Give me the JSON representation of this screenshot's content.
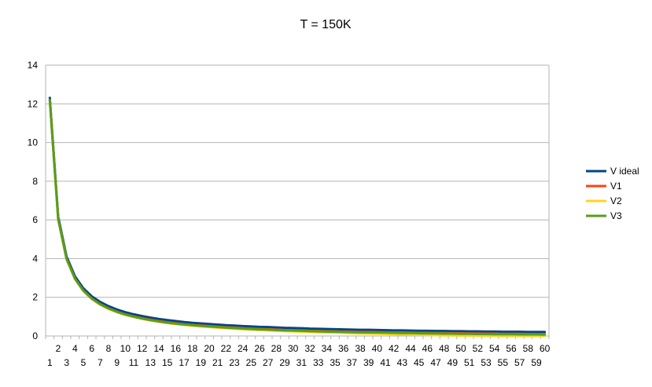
{
  "chart_data": {
    "type": "line",
    "title": "T = 150K",
    "xlabel": "",
    "ylabel": "",
    "ylim": [
      0,
      14
    ],
    "yticks": [
      "0",
      "2",
      "4",
      "6",
      "8",
      "10",
      "12",
      "14"
    ],
    "grid": "horizontal",
    "legend_position": "right",
    "categories": [
      1,
      2,
      3,
      4,
      5,
      6,
      7,
      8,
      9,
      10,
      11,
      12,
      13,
      14,
      15,
      16,
      17,
      18,
      19,
      20,
      21,
      22,
      23,
      24,
      25,
      26,
      27,
      28,
      29,
      30,
      31,
      32,
      33,
      34,
      35,
      36,
      37,
      38,
      39,
      40,
      41,
      42,
      43,
      44,
      45,
      46,
      47,
      48,
      49,
      50,
      51,
      52,
      53,
      54,
      55,
      56,
      57,
      58,
      59,
      60
    ],
    "series": [
      {
        "name": "V ideal",
        "color": "#004586",
        "values": [
          12.31,
          6.16,
          4.1,
          3.08,
          2.46,
          2.05,
          1.76,
          1.54,
          1.37,
          1.23,
          1.12,
          1.03,
          0.95,
          0.88,
          0.82,
          0.77,
          0.72,
          0.68,
          0.65,
          0.62,
          0.59,
          0.56,
          0.54,
          0.51,
          0.49,
          0.47,
          0.46,
          0.44,
          0.42,
          0.41,
          0.4,
          0.38,
          0.37,
          0.36,
          0.35,
          0.34,
          0.33,
          0.32,
          0.32,
          0.31,
          0.3,
          0.29,
          0.29,
          0.28,
          0.27,
          0.27,
          0.26,
          0.26,
          0.25,
          0.25,
          0.24,
          0.24,
          0.23,
          0.23,
          0.22,
          0.22,
          0.22,
          0.21,
          0.21,
          0.21
        ]
      },
      {
        "name": "V1",
        "color": "#ff420e",
        "values": [
          12.2,
          6.05,
          3.99,
          2.97,
          2.35,
          1.94,
          1.65,
          1.43,
          1.26,
          1.12,
          1.01,
          0.92,
          0.84,
          0.77,
          0.71,
          0.66,
          0.61,
          0.57,
          0.54,
          0.51,
          0.48,
          0.45,
          0.43,
          0.4,
          0.38,
          0.36,
          0.35,
          0.33,
          0.31,
          0.3,
          0.29,
          0.27,
          0.26,
          0.25,
          0.24,
          0.23,
          0.22,
          0.21,
          0.21,
          0.2,
          0.19,
          0.18,
          0.18,
          0.17,
          0.16,
          0.16,
          0.15,
          0.15,
          0.14,
          0.14,
          0.13,
          0.13,
          0.12,
          0.12,
          0.11,
          0.11,
          0.11,
          0.1,
          0.1,
          0.1
        ]
      },
      {
        "name": "V2",
        "color": "#ffd320",
        "values": [
          12.18,
          6.02,
          3.96,
          2.94,
          2.32,
          1.91,
          1.62,
          1.4,
          1.23,
          1.09,
          0.98,
          0.88,
          0.8,
          0.73,
          0.67,
          0.62,
          0.57,
          0.53,
          0.49,
          0.46,
          0.43,
          0.4,
          0.37,
          0.35,
          0.33,
          0.31,
          0.29,
          0.27,
          0.25,
          0.24,
          0.22,
          0.21,
          0.19,
          0.18,
          0.17,
          0.16,
          0.14,
          0.13,
          0.12,
          0.11,
          0.1,
          0.09,
          0.08,
          0.07,
          0.06,
          0.05,
          0.04,
          0.03,
          0.03,
          0.02,
          0.02,
          0.01,
          0.01,
          0.01,
          0.0,
          0.0,
          0.0,
          0.0,
          0.0,
          0.0
        ]
      },
      {
        "name": "V3",
        "color": "#579d1c",
        "values": [
          12.19,
          6.04,
          3.98,
          2.96,
          2.34,
          1.93,
          1.64,
          1.42,
          1.25,
          1.11,
          1.0,
          0.9,
          0.82,
          0.75,
          0.69,
          0.64,
          0.6,
          0.56,
          0.52,
          0.49,
          0.46,
          0.43,
          0.41,
          0.38,
          0.36,
          0.34,
          0.33,
          0.31,
          0.29,
          0.28,
          0.27,
          0.25,
          0.24,
          0.23,
          0.22,
          0.21,
          0.2,
          0.19,
          0.18,
          0.18,
          0.17,
          0.16,
          0.15,
          0.15,
          0.14,
          0.13,
          0.13,
          0.12,
          0.12,
          0.11,
          0.11,
          0.1,
          0.1,
          0.09,
          0.09,
          0.09,
          0.08,
          0.08,
          0.08,
          0.07
        ]
      }
    ]
  }
}
